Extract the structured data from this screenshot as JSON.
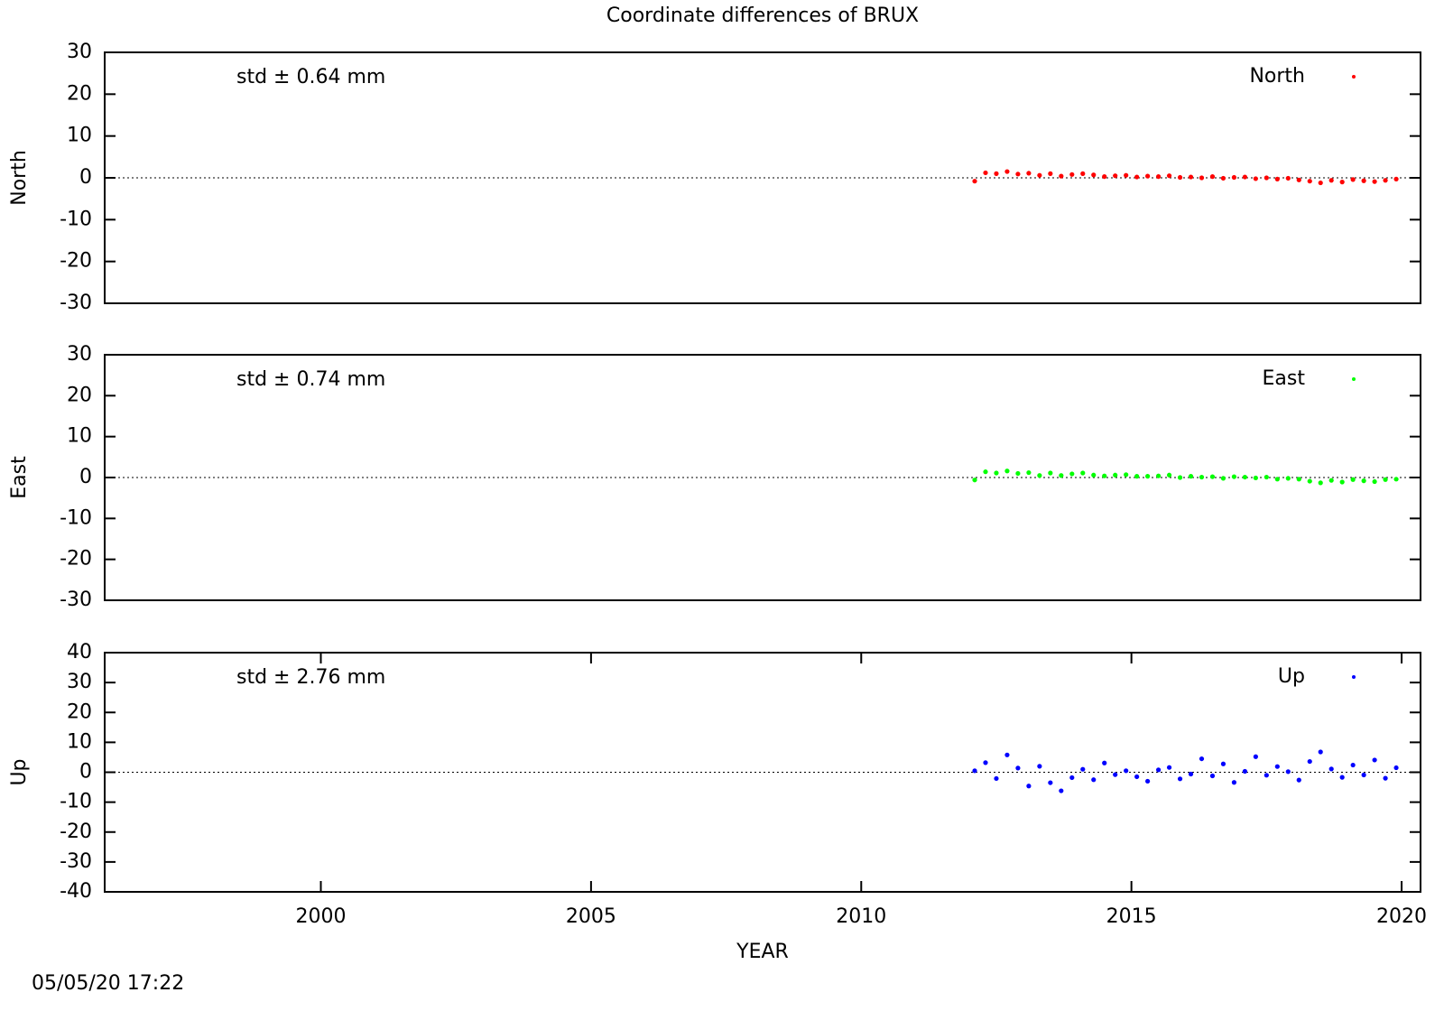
{
  "chart_data": [
    {
      "type": "scatter",
      "title": "Coordinate differences of BRUX",
      "ylabel": "North",
      "annotation": "std ± 0.64 mm",
      "xlim": [
        1996,
        2020.35
      ],
      "ylim": [
        -30,
        30
      ],
      "yticks": [
        -30,
        -20,
        -10,
        0,
        10,
        20,
        30
      ],
      "zero_line": true,
      "series": [
        {
          "name": "North",
          "color": "#ff0000",
          "x": [
            2012.1,
            2012.3,
            2012.5,
            2012.7,
            2012.9,
            2013.1,
            2013.3,
            2013.5,
            2013.7,
            2013.9,
            2014.1,
            2014.3,
            2014.5,
            2014.7,
            2014.9,
            2015.1,
            2015.3,
            2015.5,
            2015.7,
            2015.9,
            2016.1,
            2016.3,
            2016.5,
            2016.7,
            2016.9,
            2017.1,
            2017.3,
            2017.5,
            2017.7,
            2017.9,
            2018.1,
            2018.3,
            2018.5,
            2018.7,
            2018.9,
            2019.1,
            2019.3,
            2019.5,
            2019.7,
            2019.9
          ],
          "values": [
            -0.8,
            1.2,
            1.0,
            1.5,
            0.9,
            1.1,
            0.6,
            1.0,
            0.4,
            0.8,
            1.0,
            0.7,
            0.3,
            0.5,
            0.6,
            0.2,
            0.4,
            0.3,
            0.5,
            0.1,
            0.2,
            0.0,
            0.3,
            -0.1,
            0.1,
            0.2,
            -0.2,
            0.0,
            -0.3,
            -0.1,
            -0.5,
            -0.8,
            -1.2,
            -0.6,
            -1.0,
            -0.4,
            -0.7,
            -0.9,
            -0.6,
            -0.3
          ]
        }
      ]
    },
    {
      "type": "scatter",
      "ylabel": "East",
      "annotation": "std ± 0.74 mm",
      "xlim": [
        1996,
        2020.35
      ],
      "ylim": [
        -30,
        30
      ],
      "yticks": [
        -30,
        -20,
        -10,
        0,
        10,
        20,
        30
      ],
      "zero_line": true,
      "series": [
        {
          "name": "East",
          "color": "#00ff00",
          "x": [
            2012.1,
            2012.3,
            2012.5,
            2012.7,
            2012.9,
            2013.1,
            2013.3,
            2013.5,
            2013.7,
            2013.9,
            2014.1,
            2014.3,
            2014.5,
            2014.7,
            2014.9,
            2015.1,
            2015.3,
            2015.5,
            2015.7,
            2015.9,
            2016.1,
            2016.3,
            2016.5,
            2016.7,
            2016.9,
            2017.1,
            2017.3,
            2017.5,
            2017.7,
            2017.9,
            2018.1,
            2018.3,
            2018.5,
            2018.7,
            2018.9,
            2019.1,
            2019.3,
            2019.5,
            2019.7,
            2019.9
          ],
          "values": [
            -0.6,
            1.4,
            1.1,
            1.6,
            1.0,
            1.2,
            0.5,
            1.1,
            0.5,
            0.9,
            1.1,
            0.6,
            0.4,
            0.6,
            0.7,
            0.3,
            0.3,
            0.4,
            0.6,
            0.0,
            0.3,
            0.1,
            0.2,
            -0.2,
            0.2,
            0.1,
            -0.1,
            0.1,
            -0.4,
            -0.2,
            -0.4,
            -0.9,
            -1.3,
            -0.7,
            -1.1,
            -0.5,
            -0.8,
            -1.0,
            -0.5,
            -0.4
          ]
        }
      ]
    },
    {
      "type": "scatter",
      "ylabel": "Up",
      "annotation": "std ± 2.76 mm",
      "xlabel": "YEAR",
      "xlim": [
        1996,
        2020.35
      ],
      "xticks": [
        2000,
        2005,
        2010,
        2015,
        2020
      ],
      "ylim": [
        -40,
        40
      ],
      "yticks": [
        -40,
        -30,
        -20,
        -10,
        0,
        10,
        20,
        30,
        40
      ],
      "zero_line": true,
      "series": [
        {
          "name": "Up",
          "color": "#0000ff",
          "x": [
            2012.1,
            2012.3,
            2012.5,
            2012.7,
            2012.9,
            2013.1,
            2013.3,
            2013.5,
            2013.7,
            2013.9,
            2014.1,
            2014.3,
            2014.5,
            2014.7,
            2014.9,
            2015.1,
            2015.3,
            2015.5,
            2015.7,
            2015.9,
            2016.1,
            2016.3,
            2016.5,
            2016.7,
            2016.9,
            2017.1,
            2017.3,
            2017.5,
            2017.7,
            2017.9,
            2018.1,
            2018.3,
            2018.5,
            2018.7,
            2018.9,
            2019.1,
            2019.3,
            2019.5,
            2019.7,
            2019.9
          ],
          "values": [
            0.5,
            3.2,
            -2.1,
            5.8,
            1.4,
            -4.6,
            2.0,
            -3.5,
            -6.2,
            -1.8,
            1.0,
            -2.5,
            3.1,
            -0.8,
            0.5,
            -1.5,
            -3.0,
            0.8,
            1.6,
            -2.2,
            -0.6,
            4.5,
            -1.2,
            2.8,
            -3.4,
            0.3,
            5.2,
            -1.0,
            1.9,
            0.2,
            -2.6,
            3.6,
            6.8,
            1.1,
            -1.7,
            2.4,
            -0.9,
            4.1,
            -2.0,
            1.5
          ]
        }
      ]
    }
  ],
  "footer": {
    "timestamp": "05/05/20 17:22"
  }
}
